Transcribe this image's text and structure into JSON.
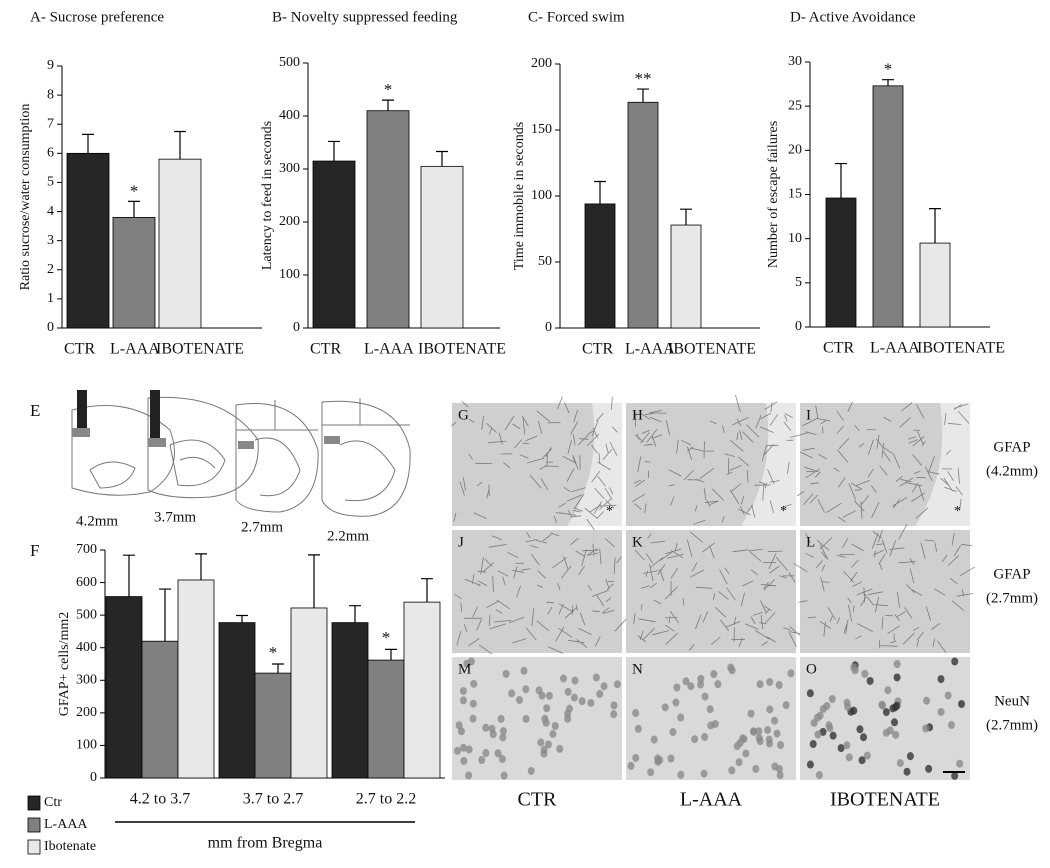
{
  "chart_data": [
    {
      "type": "bar",
      "title": "A- Sucrose preference",
      "ylabel": "Ratio sucrose/water consumption",
      "categories": [
        "CTR",
        "L-AAA",
        "IBOTENATE"
      ],
      "values": [
        6.0,
        3.8,
        5.8
      ],
      "errors": [
        0.65,
        0.55,
        0.95
      ],
      "colors": [
        "#262626",
        "#808080",
        "#e8e8e8"
      ],
      "significance": [
        null,
        "*",
        null
      ],
      "ylim": [
        0,
        9
      ],
      "yticks": [
        0,
        1,
        2,
        3,
        4,
        5,
        6,
        7,
        8,
        9
      ]
    },
    {
      "type": "bar",
      "title": "B- Novelty suppressed feeding",
      "ylabel": "Latency to feed in seconds",
      "categories": [
        "CTR",
        "L-AAA",
        "IBOTENATE"
      ],
      "values": [
        315,
        410,
        305
      ],
      "errors": [
        37,
        20,
        28
      ],
      "colors": [
        "#262626",
        "#808080",
        "#e8e8e8"
      ],
      "significance": [
        null,
        "*",
        null
      ],
      "ylim": [
        0,
        500
      ],
      "yticks": [
        0,
        100,
        200,
        300,
        400,
        500
      ]
    },
    {
      "type": "bar",
      "title": "C- Forced swim",
      "ylabel": "Time immobile in seconds",
      "categories": [
        "CTR",
        "L-AAA",
        "IBOTENATE"
      ],
      "values": [
        94,
        171,
        78
      ],
      "errors": [
        17,
        10,
        12
      ],
      "colors": [
        "#262626",
        "#808080",
        "#e8e8e8"
      ],
      "significance": [
        null,
        "**",
        null
      ],
      "ylim": [
        0,
        200
      ],
      "yticks": [
        0,
        50,
        100,
        150,
        200
      ]
    },
    {
      "type": "bar",
      "title": "D- Active Avoidance",
      "ylabel": "Number of escape failures",
      "categories": [
        "CTR",
        "L-AAA",
        "IBOTENATE"
      ],
      "values": [
        14.6,
        27.3,
        9.5
      ],
      "errors": [
        3.9,
        0.7,
        3.9
      ],
      "colors": [
        "#262626",
        "#808080",
        "#e8e8e8"
      ],
      "significance": [
        null,
        "*",
        null
      ],
      "ylim": [
        0,
        30
      ],
      "yticks": [
        0,
        5,
        10,
        15,
        20,
        25,
        30
      ]
    },
    {
      "type": "grouped-bar",
      "title": "F",
      "ylabel": "GFAP+ cells/mm2",
      "xlabel": "mm from Bregma",
      "categories": [
        "4.2 to 3.7",
        "3.7 to 2.7",
        "2.7 to 2.2"
      ],
      "series": [
        {
          "name": "Ctr",
          "color": "#262626",
          "values": [
            557,
            477,
            477
          ],
          "errors": [
            127,
            22,
            52
          ],
          "significance": [
            null,
            null,
            null
          ]
        },
        {
          "name": "L-AAA",
          "color": "#808080",
          "values": [
            420,
            322,
            362
          ],
          "errors": [
            160,
            28,
            33
          ],
          "significance": [
            null,
            "*",
            "*"
          ]
        },
        {
          "name": "Ibotenate",
          "color": "#e8e8e8",
          "values": [
            608,
            522,
            540
          ],
          "errors": [
            80,
            163,
            72
          ],
          "significance": [
            null,
            null,
            null
          ]
        }
      ],
      "legend": "lower left",
      "ylim": [
        0,
        700
      ],
      "yticks": [
        0,
        100,
        200,
        300,
        400,
        500,
        600,
        700
      ]
    }
  ],
  "panel_e": {
    "label": "E",
    "sections": [
      "4.2mm",
      "3.7mm",
      "2.7mm",
      "2.2mm"
    ]
  },
  "micrographs": {
    "panels": [
      "G",
      "H",
      "I",
      "J",
      "K",
      "L",
      "M",
      "N",
      "O"
    ],
    "star": "*",
    "rows": [
      [
        "GFAP",
        "(4.2mm)"
      ],
      [
        "GFAP",
        "(2.7mm)"
      ],
      [
        "NeuN",
        "(2.7mm)"
      ]
    ],
    "columns": [
      "CTR",
      "L-AAA",
      "IBOTENATE"
    ]
  }
}
